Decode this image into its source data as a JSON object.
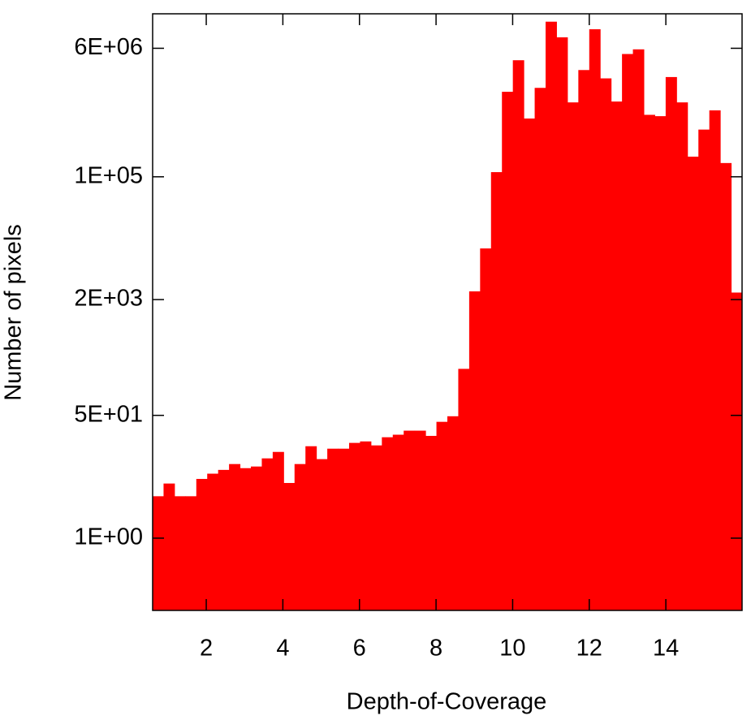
{
  "chart_data": {
    "type": "histogram",
    "x_label": "Depth-of-Coverage",
    "y_label": "Number of pixels",
    "color": "#ff0000",
    "log_y": true,
    "grid": false,
    "bins": [
      0.6,
      0.885,
      1.17,
      1.455,
      1.74,
      2.025,
      2.31,
      2.595,
      2.88,
      3.165,
      3.45,
      3.735,
      4.02,
      4.305,
      4.59,
      4.875,
      5.16,
      5.445,
      5.73,
      6.015,
      6.3,
      6.585,
      6.87,
      7.155,
      7.44,
      7.725,
      8.01,
      8.295,
      8.58,
      8.865,
      9.15,
      9.435,
      9.72,
      10.005,
      10.29,
      10.575,
      10.86,
      11.145,
      11.43,
      11.715,
      12.0,
      12.285,
      12.57,
      12.855,
      13.14,
      13.425,
      13.71,
      13.995,
      14.28,
      14.565,
      14.85,
      15.135,
      15.42,
      15.705,
      15.99
    ],
    "values": [
      3.8,
      5.7,
      3.8,
      3.8,
      6.6,
      7.8,
      8.8,
      10.6,
      9.3,
      9.8,
      12.7,
      15.6,
      5.8,
      10.6,
      18.7,
      12.4,
      17.3,
      17.3,
      20.8,
      21.8,
      19.2,
      24.9,
      27,
      30.7,
      30.7,
      26,
      40.7,
      48.6,
      220,
      2600,
      10200,
      116000,
      1500000,
      4100000,
      640000,
      1700000,
      14000000,
      8500000,
      1070000,
      3000000,
      11000000,
      2300000,
      1100000,
      5000000,
      5800000,
      720000,
      690000,
      2400000,
      1070000,
      190000,
      450000,
      830000,
      155000,
      2500
    ],
    "xlim": [
      0.6,
      15.99
    ],
    "xticks": [
      2,
      4,
      6,
      8,
      10,
      12,
      14
    ],
    "ylim": [
      0.1,
      18000000
    ],
    "yticks": [
      {
        "value": 1,
        "label": "1E+00"
      },
      {
        "value": 50,
        "label": "5E+01"
      },
      {
        "value": 2000,
        "label": "2E+03"
      },
      {
        "value": 100000,
        "label": "1E+05"
      },
      {
        "value": 6000000,
        "label": "6E+06"
      }
    ]
  }
}
